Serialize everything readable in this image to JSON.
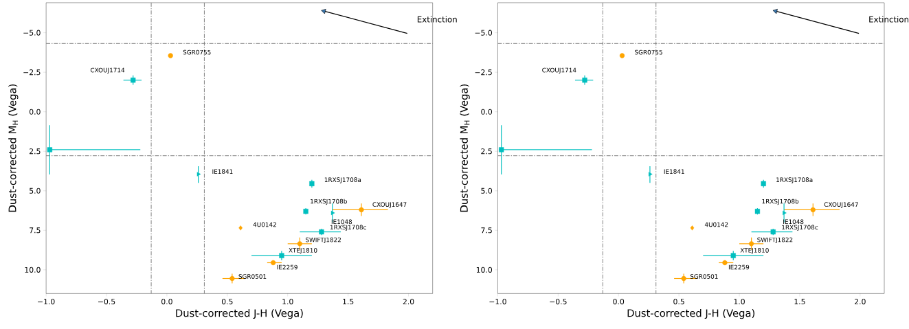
{
  "chart_data": [
    {
      "type": "scatter",
      "xlabel": "Dust-corrected J-H (Vega)",
      "ylabel": "Dust-corrected M$_{H}$ (Vega)",
      "xlim": [
        -1.0,
        2.2
      ],
      "ylim": [
        11.5,
        -6.9
      ],
      "xticks": [
        {
          "value": -1.0,
          "label": "−1.0"
        },
        {
          "value": -0.5,
          "label": "−0.5"
        },
        {
          "value": 0.0,
          "label": "0.0"
        },
        {
          "value": 0.5,
          "label": "0.5"
        },
        {
          "value": 1.0,
          "label": "1.0"
        },
        {
          "value": 1.5,
          "label": "1.5"
        },
        {
          "value": 2.0,
          "label": "2.0"
        }
      ],
      "yticks": [
        {
          "value": -5.0,
          "label": "−5.0"
        },
        {
          "value": -2.5,
          "label": "−2.5"
        },
        {
          "value": 0.0,
          "label": "0.0"
        },
        {
          "value": 2.5,
          "label": "2.5"
        },
        {
          "value": 5.0,
          "label": "5.0"
        },
        {
          "value": 7.5,
          "label": "7.5"
        },
        {
          "value": 10.0,
          "label": "10.0"
        }
      ],
      "ref_lines": [
        {
          "axis": "y",
          "value": -4.32,
          "color": "#808080",
          "line_style": "dashdot"
        },
        {
          "axis": "y",
          "value": 2.78,
          "color": "#808080",
          "line_style": "dashdot"
        },
        {
          "axis": "x",
          "value": -0.13,
          "color": "#808080",
          "line_style": "dashdot"
        },
        {
          "axis": "x",
          "value": 0.31,
          "color": "#808080",
          "line_style": "dashdot"
        }
      ],
      "series": [
        {
          "name": "SGR0755",
          "marker": "circle",
          "color": "#ffa500",
          "x": [
            0.03
          ],
          "values": [
            -3.55
          ]
        },
        {
          "name": "CXOUJ1714",
          "marker": "square",
          "color": "#00bfbf",
          "x": [
            -0.28
          ],
          "values": [
            -2.0
          ],
          "xerrors": [
            [
              -0.36,
              -0.21
            ]
          ],
          "errors": [
            [
              -2.3,
              -1.7
            ]
          ]
        },
        {
          "marker": "square",
          "color": "#00bfbf",
          "x": [
            -0.97
          ],
          "values": [
            2.4
          ],
          "xerrors": [
            [
              -0.99,
              -0.22
            ]
          ],
          "errors": [
            [
              0.85,
              3.97
            ]
          ]
        },
        {
          "name": "IE1841",
          "marker": "triangle",
          "color": "#00bfbf",
          "x": [
            0.26
          ],
          "values": [
            3.95
          ],
          "errors": [
            [
              3.45,
              4.5
            ]
          ]
        },
        {
          "name": "1RXSJ1708a",
          "marker": "square",
          "color": "#00bfbf",
          "x": [
            1.2
          ],
          "values": [
            4.55
          ],
          "errors": [
            [
              4.3,
              4.8
            ]
          ]
        },
        {
          "name": "1RXSJ1708b",
          "marker": "square",
          "color": "#00bfbf",
          "x": [
            1.15
          ],
          "values": [
            6.3
          ],
          "errors": [
            [
              6.1,
              6.5
            ]
          ]
        },
        {
          "name": "CXOUJ1647",
          "marker": "circle",
          "color": "#ffa500",
          "x": [
            1.61
          ],
          "values": [
            6.2
          ],
          "xerrors": [
            [
              1.37,
              1.83
            ]
          ],
          "errors": [
            [
              5.8,
              6.6
            ]
          ]
        },
        {
          "name": "IE1048",
          "marker": "triangle",
          "color": "#00bfbf",
          "x": [
            1.37
          ],
          "values": [
            6.4
          ],
          "errors": [
            [
              5.8,
              7.0
            ]
          ]
        },
        {
          "name": "4U0142",
          "marker": "diamond",
          "color": "#ffa500",
          "x": [
            0.61
          ],
          "values": [
            7.35
          ]
        },
        {
          "name": "1RXSJ1708c",
          "marker": "square",
          "color": "#00bfbf",
          "x": [
            1.28
          ],
          "values": [
            7.6
          ],
          "xerrors": [
            [
              1.1,
              1.44
            ]
          ],
          "errors": [
            [
              7.4,
              7.8
            ]
          ]
        },
        {
          "name": "SWIFTJ1822",
          "marker": "circle",
          "color": "#ffa500",
          "x": [
            1.1
          ],
          "values": [
            8.35
          ],
          "xerrors": [
            [
              1.0,
              1.2
            ]
          ],
          "errors": [
            [
              7.95,
              8.75
            ]
          ]
        },
        {
          "name": "XTEJ1810",
          "marker": "square",
          "color": "#00bfbf",
          "x": [
            0.95
          ],
          "values": [
            9.1
          ],
          "xerrors": [
            [
              0.7,
              1.2
            ]
          ],
          "errors": [
            [
              8.8,
              9.4
            ]
          ]
        },
        {
          "name": "IE2259",
          "marker": "circle",
          "color": "#ffa500",
          "x": [
            0.88
          ],
          "values": [
            9.55
          ],
          "xerrors": [
            [
              0.83,
              0.95
            ]
          ]
        },
        {
          "name": "SGR0501",
          "marker": "circle",
          "color": "#ffa500",
          "x": [
            0.54
          ],
          "values": [
            10.55
          ],
          "xerrors": [
            [
              0.46,
              0.65
            ]
          ],
          "errors": [
            [
              10.25,
              10.85
            ]
          ]
        },
        {
          "name": "Extinction",
          "type": "line",
          "color": "#000000",
          "x": [
            1.99,
            1.3
          ],
          "values": [
            -4.96,
            -6.37
          ]
        }
      ]
    },
    {
      "type": "scatter",
      "xlabel": "Dust-corrected J-H (Vega)",
      "ylabel": "Dust-corrected M$_{H}$ (Vega)",
      "xlim": [
        -1.0,
        2.2
      ],
      "ylim": [
        11.5,
        -6.9
      ],
      "xticks": [
        {
          "value": -1.0,
          "label": "−1.0"
        },
        {
          "value": -0.5,
          "label": "−0.5"
        },
        {
          "value": 0.0,
          "label": "0.0"
        },
        {
          "value": 0.5,
          "label": "0.5"
        },
        {
          "value": 1.0,
          "label": "1.0"
        },
        {
          "value": 1.5,
          "label": "1.5"
        },
        {
          "value": 2.0,
          "label": "2.0"
        }
      ],
      "yticks": [
        {
          "value": -5.0,
          "label": "−5.0"
        },
        {
          "value": -2.5,
          "label": "−2.5"
        },
        {
          "value": 0.0,
          "label": "0.0"
        },
        {
          "value": 2.5,
          "label": "2.5"
        },
        {
          "value": 5.0,
          "label": "5.0"
        },
        {
          "value": 7.5,
          "label": "7.5"
        },
        {
          "value": 10.0,
          "label": "10.0"
        }
      ],
      "ref_lines": [
        {
          "axis": "y",
          "value": -4.32,
          "color": "#808080",
          "line_style": "dashdot"
        },
        {
          "axis": "y",
          "value": 2.78,
          "color": "#808080",
          "line_style": "dashdot"
        },
        {
          "axis": "x",
          "value": -0.13,
          "color": "#808080",
          "line_style": "dashdot"
        },
        {
          "axis": "x",
          "value": 0.31,
          "color": "#808080",
          "line_style": "dashdot"
        }
      ],
      "series": [
        {
          "name": "SGR0755",
          "marker": "circle",
          "color": "#ffa500",
          "x": [
            0.03
          ],
          "values": [
            -3.55
          ]
        },
        {
          "name": "CXOUJ1714",
          "marker": "square",
          "color": "#00bfbf",
          "x": [
            -0.28
          ],
          "values": [
            -2.0
          ],
          "xerrors": [
            [
              -0.36,
              -0.21
            ]
          ],
          "errors": [
            [
              -2.3,
              -1.7
            ]
          ]
        },
        {
          "marker": "square",
          "color": "#00bfbf",
          "x": [
            -0.97
          ],
          "values": [
            2.4
          ],
          "xerrors": [
            [
              -0.99,
              -0.22
            ]
          ],
          "errors": [
            [
              0.85,
              3.97
            ]
          ]
        },
        {
          "name": "IE1841",
          "marker": "triangle",
          "color": "#00bfbf",
          "x": [
            0.26
          ],
          "values": [
            3.95
          ],
          "errors": [
            [
              3.45,
              4.5
            ]
          ]
        },
        {
          "name": "1RXSJ1708a",
          "marker": "square",
          "color": "#00bfbf",
          "x": [
            1.2
          ],
          "values": [
            4.55
          ],
          "errors": [
            [
              4.3,
              4.8
            ]
          ]
        },
        {
          "name": "1RXSJ1708b",
          "marker": "square",
          "color": "#00bfbf",
          "x": [
            1.15
          ],
          "values": [
            6.3
          ],
          "errors": [
            [
              6.1,
              6.5
            ]
          ]
        },
        {
          "name": "CXOUJ1647",
          "marker": "circle",
          "color": "#ffa500",
          "x": [
            1.61
          ],
          "values": [
            6.2
          ],
          "xerrors": [
            [
              1.37,
              1.83
            ]
          ],
          "errors": [
            [
              5.8,
              6.6
            ]
          ]
        },
        {
          "name": "IE1048",
          "marker": "triangle",
          "color": "#00bfbf",
          "x": [
            1.37
          ],
          "values": [
            6.4
          ],
          "errors": [
            [
              5.8,
              7.0
            ]
          ]
        },
        {
          "name": "4U0142",
          "marker": "diamond",
          "color": "#ffa500",
          "x": [
            0.61
          ],
          "values": [
            7.35
          ]
        },
        {
          "name": "1RXSJ1708c",
          "marker": "square",
          "color": "#00bfbf",
          "x": [
            1.28
          ],
          "values": [
            7.6
          ],
          "xerrors": [
            [
              1.1,
              1.44
            ]
          ],
          "errors": [
            [
              7.4,
              7.8
            ]
          ]
        },
        {
          "name": "SWIFTJ1822",
          "marker": "circle",
          "color": "#ffa500",
          "x": [
            1.1
          ],
          "values": [
            8.35
          ],
          "xerrors": [
            [
              1.0,
              1.2
            ]
          ],
          "errors": [
            [
              7.95,
              8.75
            ]
          ]
        },
        {
          "name": "XTEJ1810",
          "marker": "square",
          "color": "#00bfbf",
          "x": [
            0.95
          ],
          "values": [
            9.1
          ],
          "xerrors": [
            [
              0.7,
              1.2
            ]
          ],
          "errors": [
            [
              8.8,
              9.4
            ]
          ]
        },
        {
          "name": "IE2259",
          "marker": "circle",
          "color": "#ffa500",
          "x": [
            0.88
          ],
          "values": [
            9.55
          ],
          "xerrors": [
            [
              0.83,
              0.95
            ]
          ]
        },
        {
          "name": "SGR0501",
          "marker": "circle",
          "color": "#ffa500",
          "x": [
            0.54
          ],
          "values": [
            10.55
          ],
          "xerrors": [
            [
              0.46,
              0.65
            ]
          ],
          "errors": [
            [
              10.25,
              10.85
            ]
          ]
        },
        {
          "name": "Extinction",
          "type": "line",
          "color": "#000000",
          "x": [
            1.99,
            1.3
          ],
          "values": [
            -4.96,
            -6.37
          ]
        }
      ]
    }
  ]
}
